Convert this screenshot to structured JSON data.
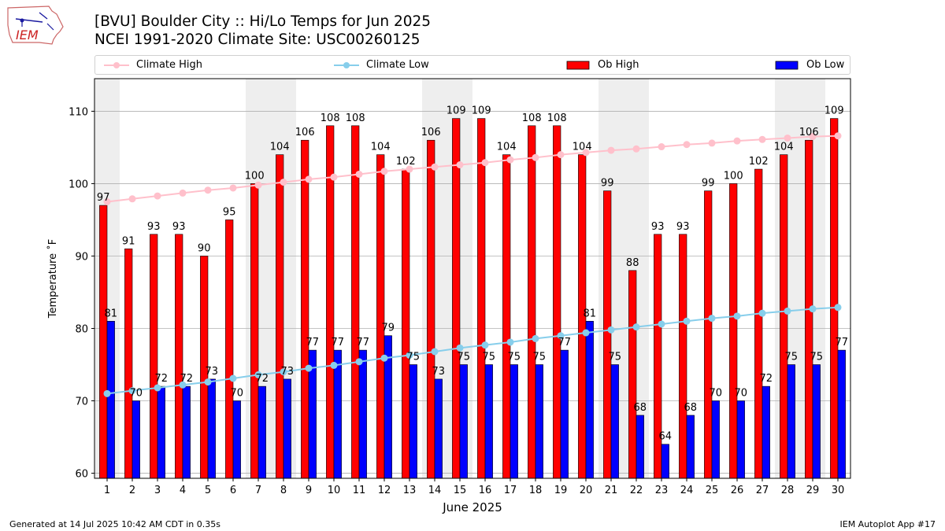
{
  "logo_text": "IEM",
  "title_line1": "[BVU] Boulder City :: Hi/Lo Temps for Jun 2025",
  "title_line2": "NCEI 1991-2020 Climate Site: USC00260125",
  "footer_left": "Generated at 14 Jul 2025 10:42 AM CDT in 0.35s",
  "footer_right": "IEM Autoplot App #17",
  "colors": {
    "ob_high": "#ff0000",
    "ob_low": "#0000ff",
    "climate_high": "#ffc0cb",
    "climate_low": "#87ceeb",
    "weekend_shade": "#eeeeee",
    "grid": "#b0b0b0"
  },
  "chart_data": {
    "type": "bar",
    "xlabel": "June 2025",
    "ylabel": "Temperature ˚F",
    "ylim": [
      59.3,
      114.5
    ],
    "yticks": [
      60,
      70,
      80,
      90,
      100,
      110
    ],
    "grid": "horizontal",
    "legend_placement": "top",
    "categories": [
      "1",
      "2",
      "3",
      "4",
      "5",
      "6",
      "7",
      "8",
      "9",
      "10",
      "11",
      "12",
      "13",
      "14",
      "15",
      "16",
      "17",
      "18",
      "19",
      "20",
      "21",
      "22",
      "23",
      "24",
      "25",
      "26",
      "27",
      "28",
      "29",
      "30"
    ],
    "shaded_days": [
      1,
      7,
      8,
      14,
      15,
      21,
      22,
      28,
      29
    ],
    "series": [
      {
        "name": "Ob High",
        "kind": "bar",
        "values": [
          97,
          91,
          93,
          93,
          90,
          95,
          100,
          104,
          106,
          108,
          108,
          104,
          102,
          106,
          109,
          109,
          104,
          108,
          108,
          104,
          99,
          88,
          93,
          93,
          99,
          100,
          102,
          104,
          106,
          109
        ]
      },
      {
        "name": "Ob Low",
        "kind": "bar",
        "values": [
          81,
          70,
          72,
          72,
          73,
          70,
          72,
          73,
          77,
          77,
          77,
          79,
          75,
          73,
          75,
          75,
          75,
          75,
          77,
          81,
          75,
          68,
          64,
          68,
          70,
          70,
          72,
          75,
          75,
          77
        ]
      },
      {
        "name": "Climate High",
        "kind": "line",
        "values": [
          97.5,
          97.9,
          98.3,
          98.7,
          99.1,
          99.4,
          99.8,
          100.2,
          100.6,
          100.9,
          101.3,
          101.7,
          102.0,
          102.3,
          102.6,
          102.9,
          103.3,
          103.6,
          104.0,
          104.3,
          104.6,
          104.8,
          105.1,
          105.4,
          105.6,
          105.9,
          106.1,
          106.3,
          106.5,
          106.6
        ]
      },
      {
        "name": "Climate Low",
        "kind": "line",
        "values": [
          71.0,
          71.4,
          71.8,
          72.2,
          72.6,
          73.1,
          73.6,
          74.0,
          74.5,
          74.9,
          75.4,
          75.9,
          76.3,
          76.8,
          77.3,
          77.7,
          78.1,
          78.6,
          79.0,
          79.4,
          79.8,
          80.2,
          80.6,
          81.0,
          81.4,
          81.7,
          82.1,
          82.4,
          82.7,
          82.9
        ]
      }
    ]
  }
}
